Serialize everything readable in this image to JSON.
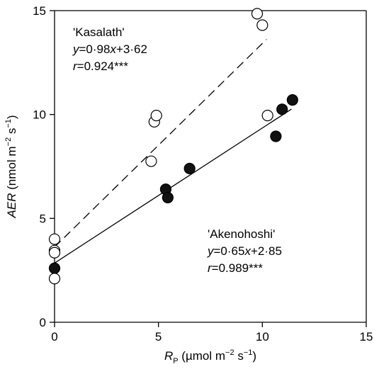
{
  "chart_data": {
    "type": "scatter",
    "xlim": [
      0,
      15
    ],
    "ylim": [
      0,
      15
    ],
    "xticks": [
      0,
      5,
      10,
      15
    ],
    "yticks": [
      0,
      5,
      10,
      15
    ],
    "xlabel": {
      "var": "R",
      "sub": "P",
      "unit_pre": " (µmol m",
      "unit_sup1": "−2",
      "unit_mid": " s",
      "unit_sup2": "−1",
      "unit_post": ")"
    },
    "ylabel": {
      "var": "AER",
      "unit_pre": " (nmol m",
      "unit_sup1": "−2",
      "unit_mid": " s",
      "unit_sup2": "−1",
      "unit_post": ")"
    },
    "grid": false,
    "series": [
      {
        "name": "'Kasalath'",
        "marker": "open-circle",
        "line_style": "dashed",
        "fit": {
          "slope": 0.98,
          "intercept": 3.62,
          "x_range": [
            0,
            10.2
          ]
        },
        "equation": {
          "y": "y",
          "eq": "=0·98",
          "x": "x",
          "rest": "+3·62"
        },
        "r_text": {
          "r": "r",
          "rest": "=0.924***"
        },
        "points": [
          {
            "x": 0.0,
            "y": 4.0
          },
          {
            "x": 0.0,
            "y": 3.45
          },
          {
            "x": 0.0,
            "y": 3.35
          },
          {
            "x": 0.0,
            "y": 2.1
          },
          {
            "x": 4.65,
            "y": 7.75
          },
          {
            "x": 4.8,
            "y": 9.65
          },
          {
            "x": 4.9,
            "y": 9.95
          },
          {
            "x": 9.75,
            "y": 14.85
          },
          {
            "x": 10.0,
            "y": 14.3
          },
          {
            "x": 10.25,
            "y": 9.95
          }
        ]
      },
      {
        "name": "'Akenohoshi'",
        "marker": "filled-circle",
        "line_style": "solid",
        "fit": {
          "slope": 0.65,
          "intercept": 2.85,
          "x_range": [
            0,
            11.4
          ]
        },
        "equation": {
          "y": "y",
          "eq": "=0·65",
          "x": "x",
          "rest": "+2·85"
        },
        "r_text": {
          "r": "r",
          "rest": "=0.989***"
        },
        "points": [
          {
            "x": 0.0,
            "y": 2.6
          },
          {
            "x": 5.35,
            "y": 6.4
          },
          {
            "x": 5.45,
            "y": 6.0
          },
          {
            "x": 6.5,
            "y": 7.4
          },
          {
            "x": 10.65,
            "y": 8.95
          },
          {
            "x": 10.95,
            "y": 10.25
          },
          {
            "x": 11.45,
            "y": 10.7
          }
        ]
      }
    ]
  }
}
